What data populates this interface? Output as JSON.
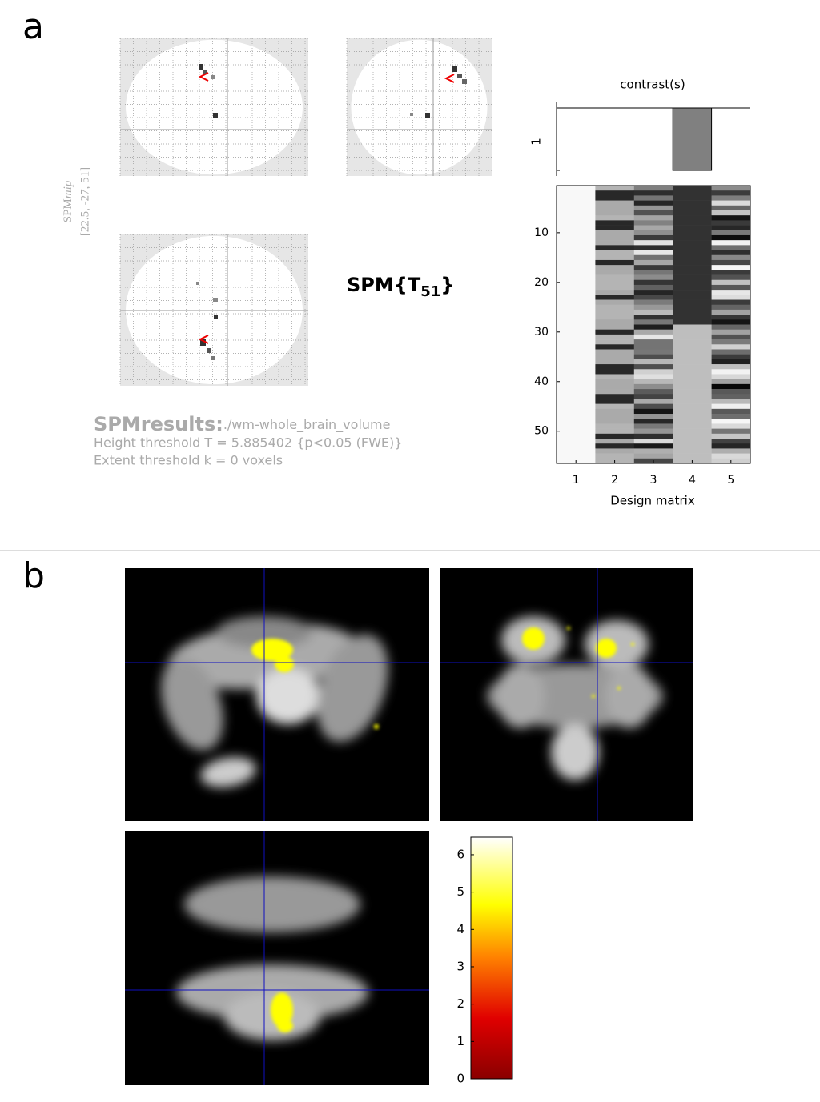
{
  "panel_a": {
    "label": "a",
    "mip": {
      "prefix": "SPM",
      "suffix": "mip",
      "coords": "[22.5, -27, 51]"
    },
    "stat": {
      "base": "SPM{T",
      "subscript": "51",
      "close": "}"
    },
    "results": {
      "title": "SPMresults:",
      "path": "./wm-whole_brain_volume",
      "height": "Height threshold T = 5.885402  {p<0.05 (FWE)}",
      "extent": "Extent threshold k = 0 voxels"
    },
    "contrast": {
      "title": "contrast(s)",
      "row_label": "1"
    },
    "design_matrix": {
      "xlabel": "Design matrix",
      "columns": [
        "1",
        "2",
        "3",
        "4",
        "5"
      ],
      "xlim": [
        0.5,
        5.5
      ],
      "ylim": [
        0.5,
        56.5
      ],
      "yticks": [
        10,
        20,
        30,
        40,
        50
      ]
    }
  },
  "panel_b": {
    "label": "b",
    "colorbar": {
      "ylim": [
        0,
        6.47
      ],
      "ticks": [
        0,
        1,
        2,
        3,
        4,
        5,
        6
      ]
    }
  }
}
